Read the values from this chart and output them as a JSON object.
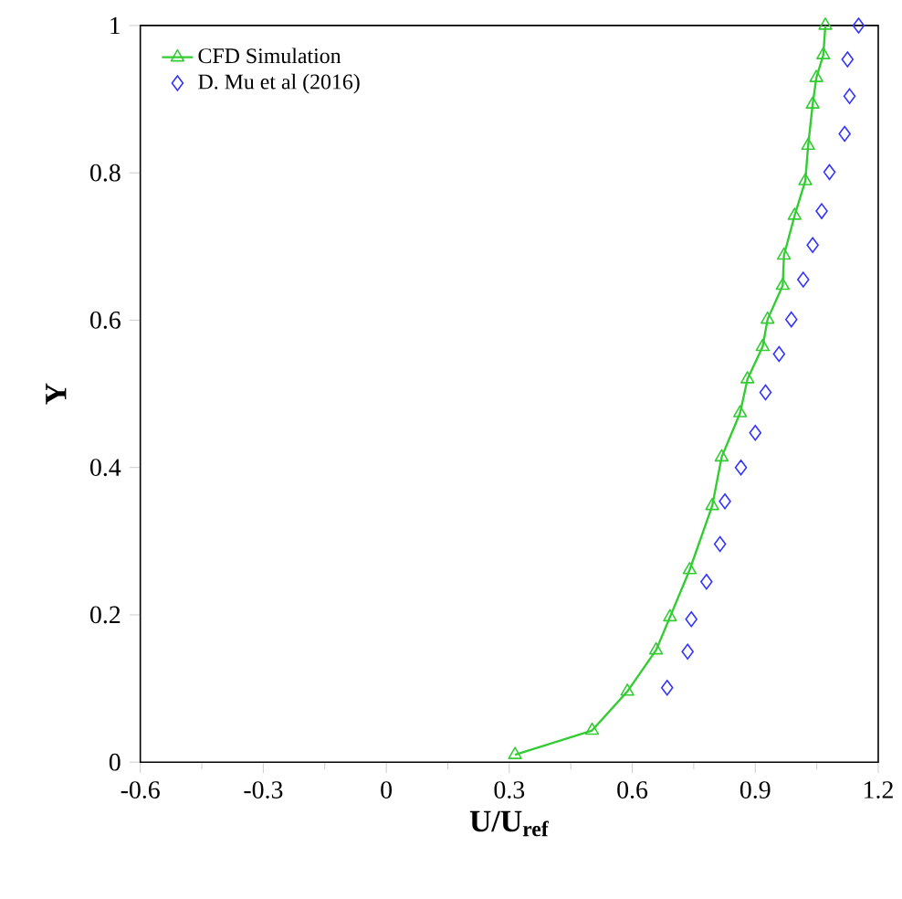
{
  "chart_data": {
    "type": "line",
    "xlabel": "U/U$_{ref}$",
    "ylabel": "Y",
    "xlim": [
      -0.6,
      1.2
    ],
    "ylim": [
      0,
      1
    ],
    "xticks": [
      -0.6,
      -0.3,
      0,
      0.3,
      0.6,
      0.9,
      1.2
    ],
    "yticks": [
      0,
      0.2,
      0.4,
      0.6,
      0.8,
      1
    ],
    "grid": false,
    "legend": "top left",
    "series": [
      {
        "name": "CFD Simulation",
        "marker": "triangle",
        "line_style": "solid",
        "color": "#33cc33",
        "x": [
          0.314,
          0.502,
          0.588,
          0.658,
          0.692,
          0.74,
          0.795,
          0.818,
          0.863,
          0.881,
          0.918,
          0.93,
          0.967,
          0.97,
          0.996,
          1.022,
          1.029,
          1.04,
          1.049,
          1.066,
          1.071
        ],
        "values": [
          0.01,
          0.043,
          0.096,
          0.152,
          0.197,
          0.261,
          0.348,
          0.414,
          0.474,
          0.52,
          0.564,
          0.601,
          0.647,
          0.688,
          0.742,
          0.789,
          0.837,
          0.893,
          0.929,
          0.96,
          1.0
        ]
      },
      {
        "name": "D. Mu et al (2016)",
        "type": "scatter",
        "marker": "diamond",
        "color": "#3333ff",
        "x": [
          0.685,
          0.735,
          0.744,
          0.781,
          0.814,
          0.826,
          0.865,
          0.9,
          0.925,
          0.958,
          0.988,
          1.017,
          1.04,
          1.062,
          1.081,
          1.118,
          1.13,
          1.125,
          1.152
        ],
        "values": [
          0.101,
          0.15,
          0.194,
          0.245,
          0.296,
          0.354,
          0.4,
          0.447,
          0.502,
          0.554,
          0.601,
          0.655,
          0.702,
          0.748,
          0.801,
          0.853,
          0.904,
          0.954,
          1.0
        ]
      }
    ]
  }
}
